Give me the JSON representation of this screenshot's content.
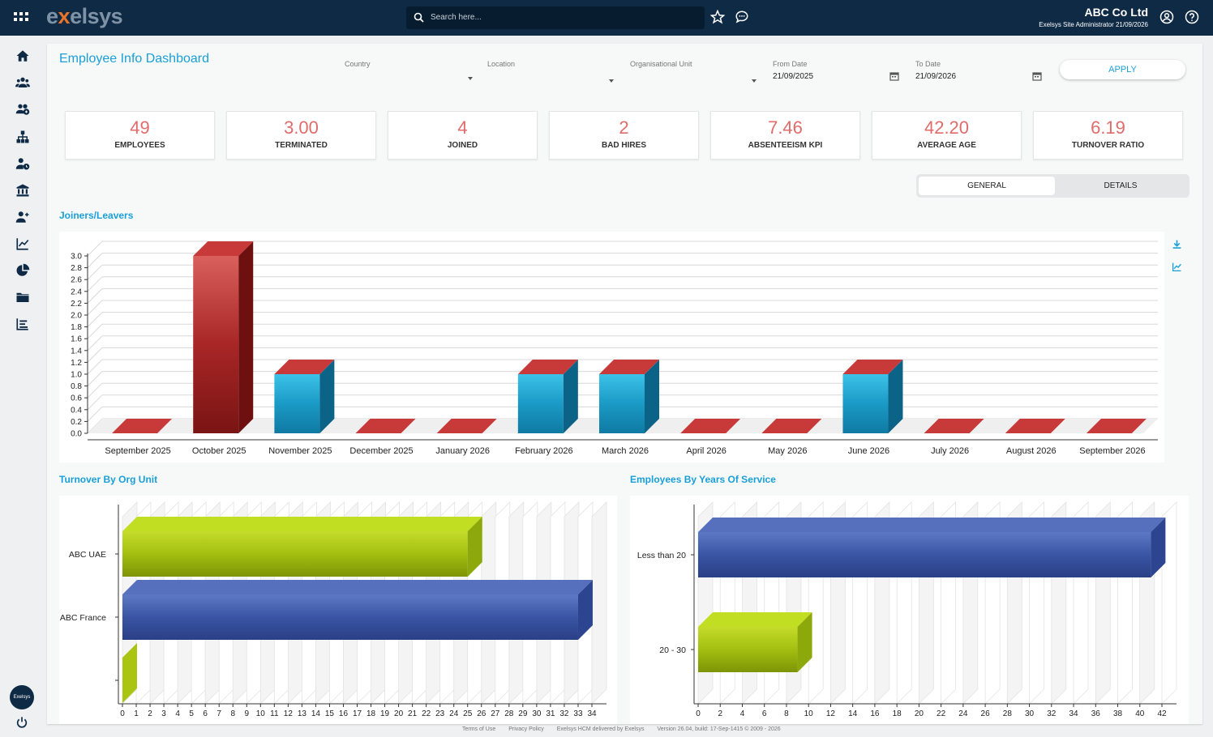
{
  "header": {
    "logo_text_pre": "e",
    "logo_text_x": "x",
    "logo_text_post": "elsys",
    "search_placeholder": "Search here...",
    "company": "ABC Co Ltd",
    "user_line": "Exelsys Site Administrator 21/09/2026"
  },
  "sidebar": {
    "items": [
      "home-icon",
      "team-icon",
      "groups-icon",
      "org-chart-icon",
      "user-clock-icon",
      "bank-icon",
      "add-user-icon",
      "line-chart-icon",
      "pie-chart-icon",
      "folder-icon",
      "list-chart-icon"
    ],
    "avatar_text": "Exelsys"
  },
  "page": {
    "title": "Employee Info Dashboard"
  },
  "filters": {
    "country": {
      "label": "Country",
      "value": ""
    },
    "location": {
      "label": "Location",
      "value": ""
    },
    "org_unit": {
      "label": "Organisational Unit",
      "value": ""
    },
    "from_date": {
      "label": "From Date",
      "value": "21/09/2025"
    },
    "to_date": {
      "label": "To Date",
      "value": "21/09/2026"
    },
    "apply_label": "APPLY"
  },
  "kpis": [
    {
      "value": "49",
      "label": "EMPLOYEES"
    },
    {
      "value": "3.00",
      "label": "TERMINATED"
    },
    {
      "value": "4",
      "label": "JOINED"
    },
    {
      "value": "2",
      "label": "BAD HIRES"
    },
    {
      "value": "7.46",
      "label": "ABSENTEEISM KPI"
    },
    {
      "value": "42.20",
      "label": "AVERAGE AGE"
    },
    {
      "value": "6.19",
      "label": "TURNOVER RATIO"
    }
  ],
  "view_toggle": {
    "general": "GENERAL",
    "details": "DETAILS",
    "selected": "GENERAL"
  },
  "sections": {
    "joiners_leavers": "Joiners/Leavers",
    "turnover": "Turnover By Org Unit",
    "years_service": "Employees By Years Of Service"
  },
  "footer": {
    "terms": "Terms of Use",
    "privacy": "Privacy Policy",
    "delivered": "Exelsys HCM delivered by Exelsys",
    "version": "Version 26.04, build: 17-Sep-1415 © 2009 - 2026"
  },
  "colors": {
    "topbar": "#0f2a45",
    "accent": "#1aa0d8",
    "kpi_value": "#e06b6b",
    "red_bar": "#b52a2a",
    "blue_bar": "#1c9cc8",
    "green_bar": "#9cbb12",
    "navy_bar": "#354f9e"
  },
  "chart_data": [
    {
      "type": "bar",
      "title": "Joiners/Leavers",
      "categories": [
        "September 2025",
        "October 2025",
        "November 2025",
        "December 2025",
        "January 2026",
        "February 2026",
        "March 2026",
        "April 2026",
        "May 2026",
        "June 2026",
        "July 2026",
        "August 2026",
        "September 2026"
      ],
      "values": [
        0,
        3,
        1,
        0,
        0,
        1,
        1,
        0,
        0,
        1,
        0,
        0,
        0
      ],
      "ylim": [
        0,
        3.0
      ],
      "yticks": [
        "0.0",
        "0.2",
        "0.4",
        "0.6",
        "0.8",
        "1.0",
        "1.2",
        "1.4",
        "1.6",
        "1.8",
        "2.0",
        "2.2",
        "2.4",
        "2.6",
        "2.8",
        "3.0"
      ],
      "grid": true
    },
    {
      "type": "bar",
      "orientation": "horizontal",
      "title": "Turnover By Org Unit",
      "categories": [
        "ABC UAE",
        "ABC France",
        ""
      ],
      "values": [
        25,
        33,
        0
      ],
      "xlim": [
        0,
        34
      ],
      "xticks": [
        "0",
        "1",
        "2",
        "3",
        "4",
        "5",
        "6",
        "7",
        "8",
        "9",
        "10",
        "11",
        "12",
        "13",
        "14",
        "15",
        "16",
        "17",
        "18",
        "19",
        "20",
        "21",
        "22",
        "23",
        "24",
        "25",
        "26",
        "27",
        "28",
        "29",
        "30",
        "31",
        "32",
        "33",
        "34"
      ]
    },
    {
      "type": "bar",
      "orientation": "horizontal",
      "title": "Employees By Years Of Service",
      "categories": [
        "Less than 20",
        "20 - 30"
      ],
      "values": [
        41,
        9
      ],
      "xlim": [
        0,
        42
      ],
      "xticks": [
        "0",
        "2",
        "4",
        "6",
        "8",
        "10",
        "12",
        "14",
        "16",
        "18",
        "20",
        "22",
        "24",
        "26",
        "28",
        "30",
        "32",
        "34",
        "36",
        "38",
        "40",
        "42"
      ]
    }
  ]
}
